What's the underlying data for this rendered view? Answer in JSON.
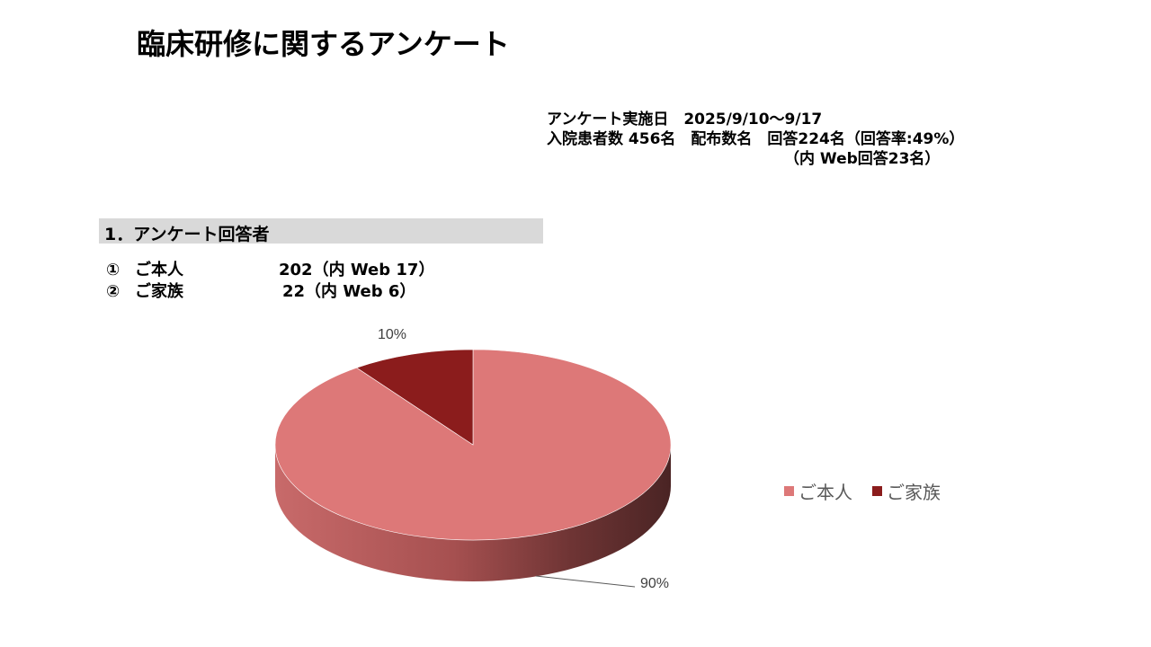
{
  "title": "臨床研修に関するアンケート",
  "survey_info": {
    "line1": "アンケート実施日　2025/9/10～9/17",
    "line2": "入院患者数 456名　配布数名　回答224名（回答率:49%）",
    "line3": "（内 Web回答23名）"
  },
  "section": {
    "header": "1．アンケート回答者"
  },
  "respondents": [
    {
      "num": "①",
      "label": "ご本人",
      "count": "202（内 Web 17）"
    },
    {
      "num": "②",
      "label": "ご家族",
      "count": "22（内 Web 6）"
    }
  ],
  "chart_data": {
    "type": "pie",
    "style": "3d",
    "categories": [
      "ご本人",
      "ご家族"
    ],
    "values": [
      90,
      10
    ],
    "data_labels": [
      "90%",
      "10%"
    ],
    "colors": [
      "#dd7878",
      "#8b1c1c"
    ],
    "legend_placement": "right"
  }
}
